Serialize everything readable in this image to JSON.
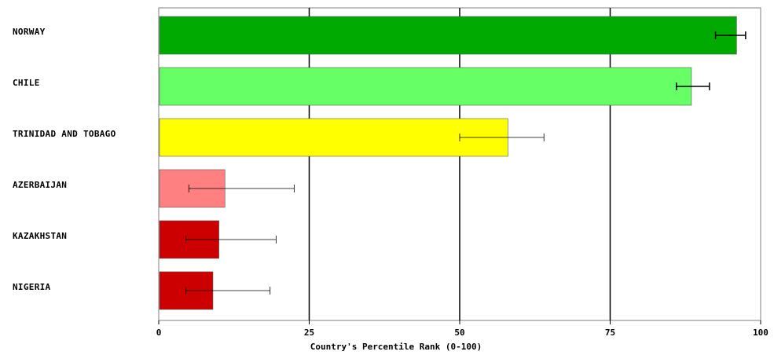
{
  "chart_data": {
    "type": "bar",
    "orientation": "horizontal",
    "categories": [
      "NORWAY",
      "CHILE",
      "TRINIDAD AND TOBAGO",
      "AZERBAIJAN",
      "KAZAKHSTAN",
      "NIGERIA"
    ],
    "values": [
      96,
      88.5,
      58,
      11,
      10,
      9
    ],
    "error_low": [
      92.5,
      86,
      50,
      5,
      4.5,
      4.5
    ],
    "error_high": [
      97.5,
      91.5,
      64,
      22.5,
      19.5,
      18.5
    ],
    "colors": [
      "#00aa00",
      "#66ff66",
      "#ffff00",
      "#ff8080",
      "#cc0000",
      "#cc0000"
    ],
    "xlabel": "Country's Percentile Rank (0-100)",
    "ylabel": "",
    "xlim": [
      0,
      100
    ],
    "xticks": [
      0,
      25,
      50,
      75,
      100
    ],
    "grid": "vertical lines at ticks"
  }
}
